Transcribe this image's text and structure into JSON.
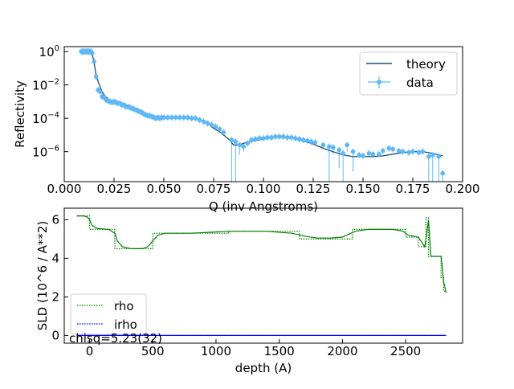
{
  "chart_data": [
    {
      "type": "line",
      "xlabel": "Q (inv Angstroms)",
      "ylabel": "Reflectivity",
      "yscale": "log",
      "xlim": [
        0.0,
        0.2
      ],
      "ylim_exponent": [
        -7.8,
        0.3
      ],
      "xticks": [
        "0.000",
        "0.025",
        "0.050",
        "0.075",
        "0.100",
        "0.125",
        "0.150",
        "0.175",
        "0.200"
      ],
      "xtick_values": [
        0.0,
        0.025,
        0.05,
        0.075,
        0.1,
        0.125,
        0.15,
        0.175,
        0.2
      ],
      "ytick_exponents": [
        0,
        -2,
        -4,
        -6
      ],
      "ytick_base": "10",
      "legend_position": "top-right",
      "series": [
        {
          "name": "theory",
          "color": "#1f4e79",
          "x": [
            0.008,
            0.01,
            0.012,
            0.013,
            0.014,
            0.015,
            0.016,
            0.017,
            0.018,
            0.019,
            0.02,
            0.022,
            0.025,
            0.028,
            0.03,
            0.033,
            0.035,
            0.038,
            0.04,
            0.043,
            0.045,
            0.048,
            0.05,
            0.055,
            0.06,
            0.065,
            0.068,
            0.07,
            0.073,
            0.075,
            0.078,
            0.08,
            0.083,
            0.085,
            0.088,
            0.09,
            0.095,
            0.1,
            0.105,
            0.11,
            0.115,
            0.12,
            0.125,
            0.13,
            0.135,
            0.14,
            0.145,
            0.15,
            0.155,
            0.16,
            0.165,
            0.17,
            0.175,
            0.18,
            0.185,
            0.19
          ],
          "y_exp": [
            0.0,
            0.0,
            0.0,
            0.0,
            -0.1,
            -0.7,
            -1.4,
            -1.8,
            -2.1,
            -2.4,
            -2.6,
            -2.85,
            -3.0,
            -3.1,
            -3.2,
            -3.3,
            -3.4,
            -3.55,
            -3.7,
            -3.85,
            -3.95,
            -3.95,
            -3.95,
            -3.95,
            -3.95,
            -4.0,
            -4.1,
            -4.2,
            -4.4,
            -4.6,
            -4.8,
            -5.0,
            -5.3,
            -5.6,
            -5.6,
            -5.5,
            -5.35,
            -5.25,
            -5.15,
            -5.15,
            -5.2,
            -5.35,
            -5.55,
            -5.8,
            -6.0,
            -6.2,
            -6.3,
            -6.3,
            -6.3,
            -6.25,
            -6.15,
            -6.05,
            -6.0,
            -6.0,
            -6.1,
            -6.25
          ]
        },
        {
          "name": "data",
          "color": "#5db8f5",
          "x": [
            0.0085,
            0.009,
            0.0095,
            0.01,
            0.0105,
            0.011,
            0.0115,
            0.012,
            0.0125,
            0.013,
            0.0135,
            0.014,
            0.015,
            0.016,
            0.017,
            0.018,
            0.019,
            0.02,
            0.021,
            0.022,
            0.023,
            0.024,
            0.025,
            0.026,
            0.027,
            0.028,
            0.029,
            0.03,
            0.031,
            0.032,
            0.033,
            0.034,
            0.035,
            0.036,
            0.037,
            0.038,
            0.039,
            0.04,
            0.041,
            0.042,
            0.043,
            0.044,
            0.045,
            0.046,
            0.047,
            0.048,
            0.049,
            0.05,
            0.052,
            0.054,
            0.056,
            0.058,
            0.06,
            0.062,
            0.064,
            0.066,
            0.068,
            0.07,
            0.072,
            0.074,
            0.076,
            0.078,
            0.08,
            0.084,
            0.086,
            0.088,
            0.09,
            0.092,
            0.094,
            0.096,
            0.098,
            0.1,
            0.102,
            0.104,
            0.106,
            0.108,
            0.11,
            0.112,
            0.114,
            0.116,
            0.118,
            0.12,
            0.122,
            0.124,
            0.126,
            0.13,
            0.133,
            0.135,
            0.138,
            0.14,
            0.142,
            0.145,
            0.148,
            0.15,
            0.153,
            0.155,
            0.158,
            0.16,
            0.163,
            0.165,
            0.168,
            0.17,
            0.173,
            0.175,
            0.178,
            0.18,
            0.183,
            0.185,
            0.188,
            0.19
          ],
          "y_exp": [
            0.0,
            0.0,
            0.0,
            0.0,
            0.0,
            0.0,
            0.0,
            0.0,
            0.0,
            0.0,
            0.0,
            -0.1,
            -0.6,
            -1.5,
            -2.3,
            -2.4,
            -2.7,
            -2.75,
            -2.9,
            -2.95,
            -3.0,
            -3.05,
            -3.0,
            -3.05,
            -3.1,
            -3.1,
            -3.2,
            -3.2,
            -3.3,
            -3.3,
            -3.35,
            -3.4,
            -3.45,
            -3.5,
            -3.55,
            -3.6,
            -3.65,
            -3.75,
            -3.8,
            -3.85,
            -3.85,
            -3.9,
            -3.95,
            -4.0,
            -3.95,
            -4.0,
            -3.95,
            -3.95,
            -3.95,
            -3.95,
            -3.95,
            -3.95,
            -3.95,
            -3.95,
            -4.0,
            -4.0,
            -4.1,
            -4.2,
            -4.3,
            -4.4,
            -4.5,
            -4.65,
            -4.85,
            -5.3,
            -5.4,
            -5.6,
            -5.7,
            -5.5,
            -5.3,
            -5.25,
            -5.2,
            -5.2,
            -5.15,
            -5.15,
            -5.1,
            -5.1,
            -5.1,
            -5.15,
            -5.15,
            -5.2,
            -5.25,
            -5.3,
            -5.35,
            -5.4,
            -5.45,
            -5.6,
            -5.7,
            -5.75,
            -5.9,
            -6.1,
            -5.6,
            -6.0,
            -6.2,
            -6.25,
            -6.1,
            -6.15,
            -6.15,
            -5.95,
            -5.8,
            -5.85,
            -5.95,
            -6.0,
            -6.05,
            -6.0,
            -6.05,
            -6.0,
            -6.3,
            -6.2,
            -6.3,
            -7.3
          ],
          "err_low_exp": [
            null,
            null,
            null,
            null,
            null,
            null,
            null,
            null,
            null,
            null,
            null,
            null,
            null,
            null,
            null,
            null,
            null,
            null,
            null,
            null,
            null,
            null,
            null,
            null,
            null,
            null,
            null,
            null,
            null,
            null,
            null,
            null,
            null,
            null,
            null,
            null,
            null,
            null,
            null,
            null,
            null,
            null,
            null,
            null,
            null,
            null,
            null,
            null,
            null,
            null,
            null,
            null,
            null,
            null,
            null,
            null,
            null,
            null,
            null,
            null,
            null,
            null,
            null,
            -7.8,
            -7.8,
            -6.2,
            -6.0,
            null,
            null,
            null,
            null,
            null,
            null,
            null,
            null,
            null,
            null,
            null,
            null,
            null,
            null,
            null,
            null,
            null,
            null,
            null,
            -7.8,
            -6.2,
            -7.0,
            -7.8,
            -6.0,
            -7.2,
            null,
            null,
            null,
            null,
            null,
            null,
            null,
            null,
            null,
            null,
            null,
            null,
            null,
            null,
            -7.8,
            -7.8,
            -7.8,
            -7.8
          ]
        }
      ]
    },
    {
      "type": "line",
      "xlabel": "depth (A)",
      "ylabel": "SLD (10^6 / A**2)",
      "xlim": [
        -200,
        2950
      ],
      "ylim": [
        -0.4,
        6.6
      ],
      "xticks": [
        "0",
        "500",
        "1000",
        "1500",
        "2000",
        "2500"
      ],
      "xtick_values": [
        0,
        500,
        1000,
        1500,
        2000,
        2500
      ],
      "yticks": [
        "0",
        "2",
        "4",
        "6"
      ],
      "ytick_values": [
        0,
        2,
        4,
        6
      ],
      "legend_position": "bottom-left",
      "annotation": "chisq=5.23(32)",
      "series": [
        {
          "name": "rho",
          "color": "#008000",
          "style": "dotted",
          "x": [
            -100,
            -50,
            -20,
            0,
            0,
            200,
            200,
            500,
            500,
            1100,
            1100,
            1660,
            1660,
            2080,
            2080,
            2500,
            2500,
            2600,
            2600,
            2660,
            2660,
            2680,
            2680,
            2690,
            2690,
            2780,
            2780,
            2800,
            2800,
            2820
          ],
          "y": [
            6.2,
            6.2,
            6.2,
            6.2,
            5.5,
            5.5,
            4.5,
            4.5,
            5.3,
            5.3,
            5.4,
            5.4,
            5.0,
            5.0,
            5.5,
            5.5,
            5.1,
            5.1,
            4.6,
            4.6,
            6.1,
            6.1,
            4.1,
            4.1,
            4.1,
            4.1,
            3.0,
            3.0,
            2.3,
            2.3
          ]
        },
        {
          "name": "",
          "color": "#008000",
          "style": "solid",
          "x": [
            -100,
            -50,
            -20,
            0,
            20,
            60,
            150,
            200,
            220,
            260,
            330,
            420,
            460,
            500,
            540,
            600,
            800,
            1100,
            1400,
            1600,
            1700,
            1800,
            1900,
            2000,
            2050,
            2100,
            2200,
            2400,
            2480,
            2520,
            2560,
            2600,
            2630,
            2650,
            2665,
            2680,
            2690,
            2700,
            2780,
            2790,
            2800,
            2820
          ],
          "y": [
            6.2,
            6.2,
            6.15,
            6.0,
            5.7,
            5.55,
            5.5,
            5.3,
            4.9,
            4.6,
            4.5,
            4.5,
            4.6,
            4.9,
            5.2,
            5.3,
            5.3,
            5.4,
            5.4,
            5.3,
            5.15,
            5.05,
            5.05,
            5.1,
            5.25,
            5.4,
            5.5,
            5.5,
            5.4,
            5.2,
            5.15,
            5.1,
            4.8,
            4.6,
            5.2,
            6.0,
            5.0,
            4.1,
            4.1,
            3.5,
            2.8,
            2.2
          ]
        },
        {
          "name": "irho",
          "color": "#0000ff",
          "style": "dotted",
          "x": [
            -100,
            2820
          ],
          "y": [
            0,
            0
          ]
        },
        {
          "name": "",
          "color": "#0000ff",
          "style": "solid",
          "x": [
            -100,
            2820
          ],
          "y": [
            0,
            0
          ]
        }
      ]
    }
  ]
}
